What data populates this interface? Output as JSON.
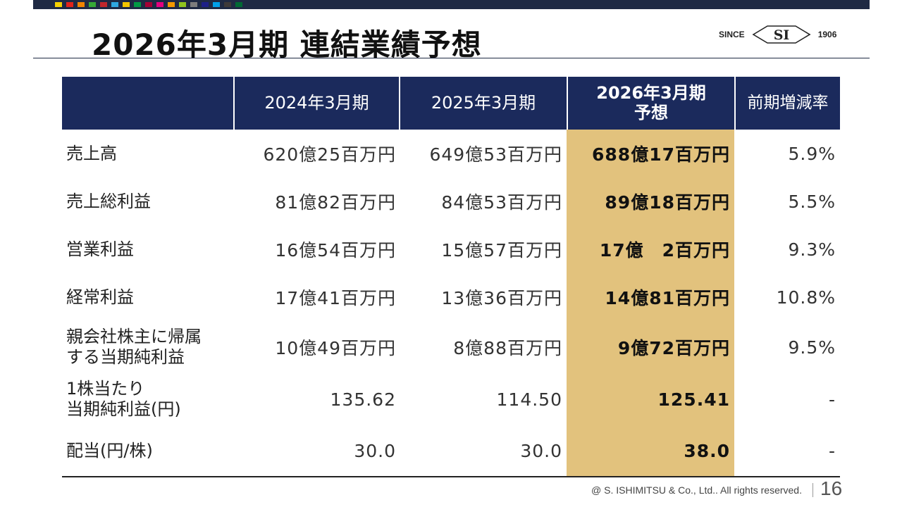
{
  "title": "2026年3月期 連結業績予想",
  "logo": {
    "since": "SINCE",
    "mark": "SI",
    "year": "1906"
  },
  "palette": [
    "#f5d000",
    "#e2231a",
    "#f08300",
    "#36a936",
    "#c1272d",
    "#2ea7e0",
    "#f2c500",
    "#009944",
    "#a40035",
    "#e4007f",
    "#f39800",
    "#8fc31f",
    "#7d7d7d",
    "#1d2088",
    "#00a0e9",
    "#3e3a39",
    "#006934"
  ],
  "table": {
    "headers": [
      "",
      "2024年3月期",
      "2025年3月期",
      "2026年3月期\n予想",
      "前期増減率"
    ],
    "rows": [
      {
        "label": "売上高",
        "fy2024": "620億25百万円",
        "fy2025": "649億53百万円",
        "fy2026": "688億17百万円",
        "change": "5.9%"
      },
      {
        "label": "売上総利益",
        "fy2024": "81億82百万円",
        "fy2025": "84億53百万円",
        "fy2026": "89億18百万円",
        "change": "5.5%"
      },
      {
        "label": "営業利益",
        "fy2024": "16億54百万円",
        "fy2025": "15億57百万円",
        "fy2026": "17億　2百万円",
        "change": "9.3%"
      },
      {
        "label": "経常利益",
        "fy2024": "17億41百万円",
        "fy2025": "13億36百万円",
        "fy2026": "14億81百万円",
        "change": "10.8%"
      },
      {
        "label": "親会社株主に帰属\nする当期純利益",
        "fy2024": "10億49百万円",
        "fy2025": "8億88百万円",
        "fy2026": "9億72百万円",
        "change": "9.5%"
      },
      {
        "label": "1株当たり\n当期純利益(円)",
        "fy2024": "135.62",
        "fy2025": "114.50",
        "fy2026": "125.41",
        "change": "-"
      },
      {
        "label": "配当(円/株)",
        "fy2024": "30.0",
        "fy2025": "30.0",
        "fy2026": "38.0",
        "change": "-"
      }
    ]
  },
  "footer": {
    "copyright": "@ S. ISHIMITSU & Co., Ltd.. All rights reserved.",
    "page": "16"
  },
  "colors": {
    "navy": "#1b2a5c",
    "highlight": "#e2c27d"
  }
}
